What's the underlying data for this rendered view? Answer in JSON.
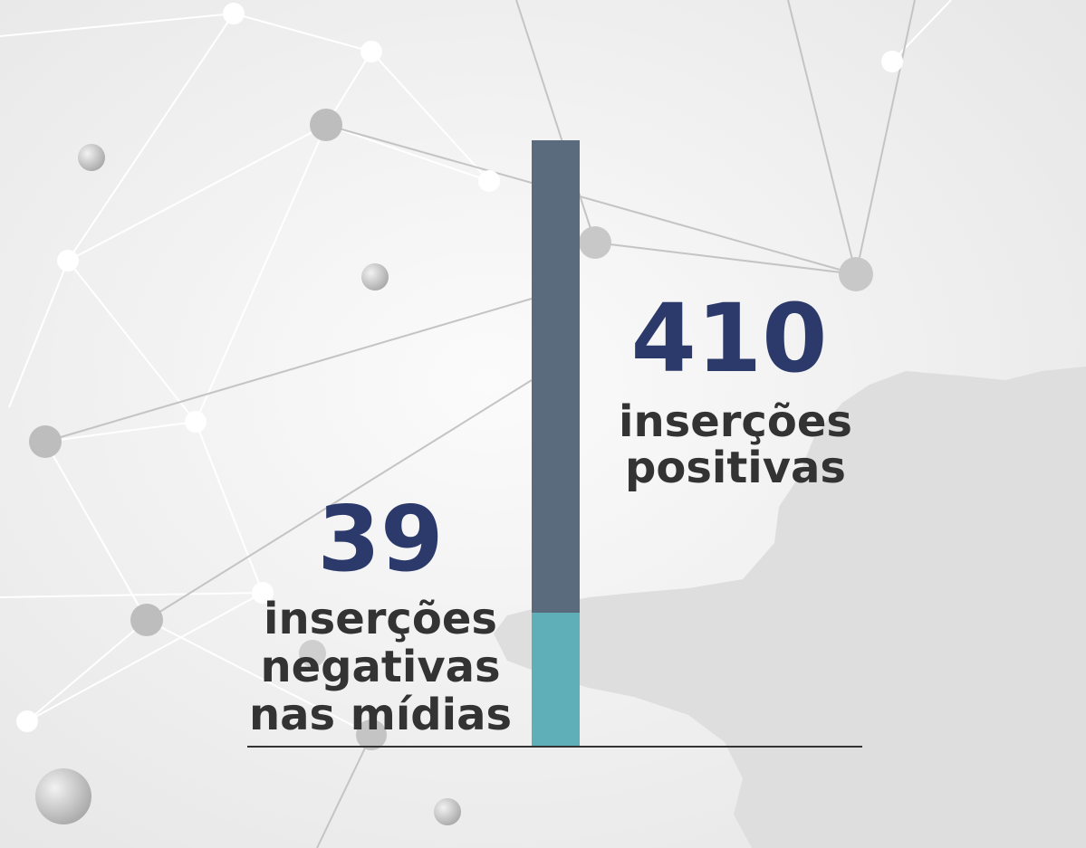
{
  "items": [
    {
      "value": 410,
      "label_lines": [
        "inserções",
        "positivas"
      ]
    },
    {
      "value": 39,
      "label_lines": [
        "inserções",
        "negativas",
        "nas mídias"
      ]
    }
  ]
}
